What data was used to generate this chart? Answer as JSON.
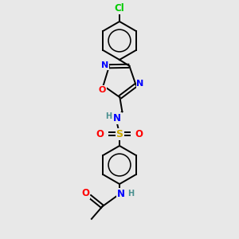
{
  "bg_color": "#e8e8e8",
  "atom_colors": {
    "C": "#000000",
    "N": "#0000ff",
    "O": "#ff0000",
    "S": "#ccaa00",
    "Cl": "#00cc00",
    "H": "#4a9090"
  },
  "bond_color": "#000000",
  "lw": 1.4,
  "ring_lw": 1.4,
  "fs": 8.5
}
